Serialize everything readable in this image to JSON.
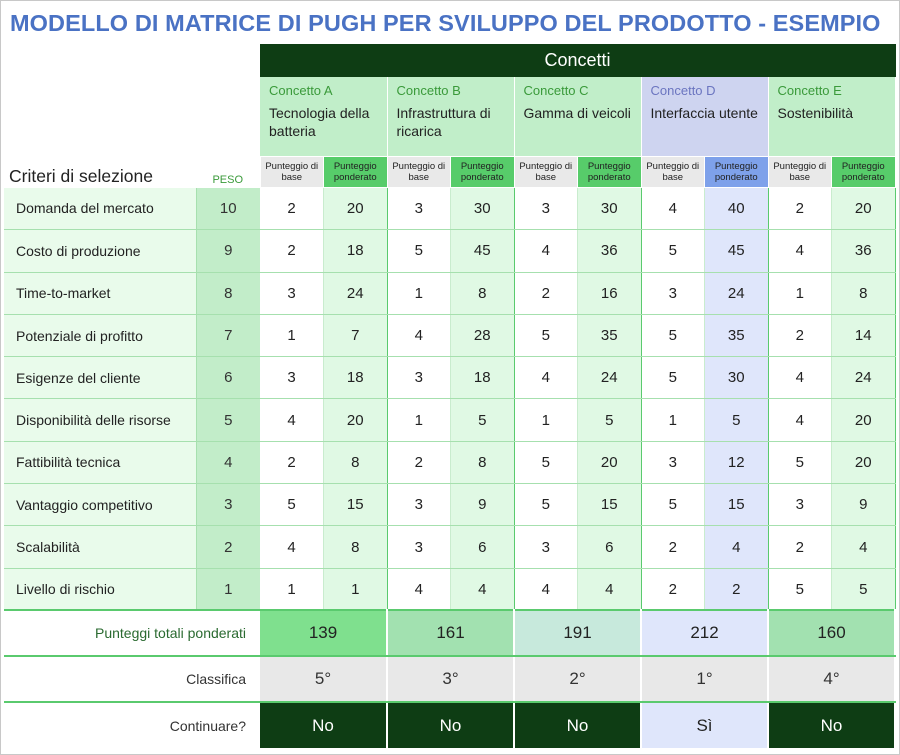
{
  "title": "MODELLO DI MATRICE DI PUGH PER SVILUPPO DEL PRODOTTO - ESEMPIO",
  "concetti_header": "Concetti",
  "criteria_header": "Criteri di selezione",
  "peso_header": "PESO",
  "sub_labels": {
    "base": "Punteggio di base",
    "ponderato": "Punteggio ponderato"
  },
  "concepts": [
    {
      "label": "Concetto A",
      "desc": "Tecnologia della batteria",
      "color": "#c1eec9",
      "highlight": false
    },
    {
      "label": "Concetto B",
      "desc": "Infrastruttura di ricarica",
      "color": "#c1eec9",
      "highlight": false
    },
    {
      "label": "Concetto C",
      "desc": "Gamma di veicoli",
      "color": "#c1eec9",
      "highlight": false
    },
    {
      "label": "Concetto D",
      "desc": "Interfaccia utente",
      "color": "#ced4f0",
      "highlight": true
    },
    {
      "label": "Concetto E",
      "desc": "Sostenibilità",
      "color": "#c1eec9",
      "highlight": false
    }
  ],
  "rows": [
    {
      "name": "Domanda del mercato",
      "peso": "10",
      "scores": [
        [
          "2",
          "20"
        ],
        [
          "3",
          "30"
        ],
        [
          "3",
          "30"
        ],
        [
          "4",
          "40"
        ],
        [
          "2",
          "20"
        ]
      ]
    },
    {
      "name": "Costo di produzione",
      "peso": "9",
      "scores": [
        [
          "2",
          "18"
        ],
        [
          "5",
          "45"
        ],
        [
          "4",
          "36"
        ],
        [
          "5",
          "45"
        ],
        [
          "4",
          "36"
        ]
      ]
    },
    {
      "name": "Time-to-market",
      "peso": "8",
      "scores": [
        [
          "3",
          "24"
        ],
        [
          "1",
          "8"
        ],
        [
          "2",
          "16"
        ],
        [
          "3",
          "24"
        ],
        [
          "1",
          "8"
        ]
      ]
    },
    {
      "name": "Potenziale di profitto",
      "peso": "7",
      "scores": [
        [
          "1",
          "7"
        ],
        [
          "4",
          "28"
        ],
        [
          "5",
          "35"
        ],
        [
          "5",
          "35"
        ],
        [
          "2",
          "14"
        ]
      ]
    },
    {
      "name": "Esigenze del cliente",
      "peso": "6",
      "scores": [
        [
          "3",
          "18"
        ],
        [
          "3",
          "18"
        ],
        [
          "4",
          "24"
        ],
        [
          "5",
          "30"
        ],
        [
          "4",
          "24"
        ]
      ]
    },
    {
      "name": "Disponibilità delle risorse",
      "peso": "5",
      "scores": [
        [
          "4",
          "20"
        ],
        [
          "1",
          "5"
        ],
        [
          "1",
          "5"
        ],
        [
          "1",
          "5"
        ],
        [
          "4",
          "20"
        ]
      ]
    },
    {
      "name": "Fattibilità tecnica",
      "peso": "4",
      "scores": [
        [
          "2",
          "8"
        ],
        [
          "2",
          "8"
        ],
        [
          "5",
          "20"
        ],
        [
          "3",
          "12"
        ],
        [
          "5",
          "20"
        ]
      ]
    },
    {
      "name": "Vantaggio competitivo",
      "peso": "3",
      "scores": [
        [
          "5",
          "15"
        ],
        [
          "3",
          "9"
        ],
        [
          "5",
          "15"
        ],
        [
          "5",
          "15"
        ],
        [
          "3",
          "9"
        ]
      ]
    },
    {
      "name": "Scalabilità",
      "peso": "2",
      "scores": [
        [
          "4",
          "8"
        ],
        [
          "3",
          "6"
        ],
        [
          "3",
          "6"
        ],
        [
          "2",
          "4"
        ],
        [
          "2",
          "4"
        ]
      ]
    },
    {
      "name": "Livello di rischio",
      "peso": "1",
      "scores": [
        [
          "1",
          "1"
        ],
        [
          "4",
          "4"
        ],
        [
          "4",
          "4"
        ],
        [
          "2",
          "2"
        ],
        [
          "5",
          "5"
        ]
      ]
    }
  ],
  "totals_label": "Punteggi totali ponderati",
  "totals": [
    "139",
    "161",
    "191",
    "212",
    "160"
  ],
  "totals_colors": [
    "#7fe08e",
    "#a2e1b0",
    "#c7e9dc",
    "#dfe6fb",
    "#a2e1b0"
  ],
  "rank_label": "Classifica",
  "ranks": [
    "5°",
    "3°",
    "2°",
    "1°",
    "4°"
  ],
  "continue_label": "Continuare?",
  "continue": [
    "No",
    "No",
    "No",
    "Sì",
    "No"
  ]
}
